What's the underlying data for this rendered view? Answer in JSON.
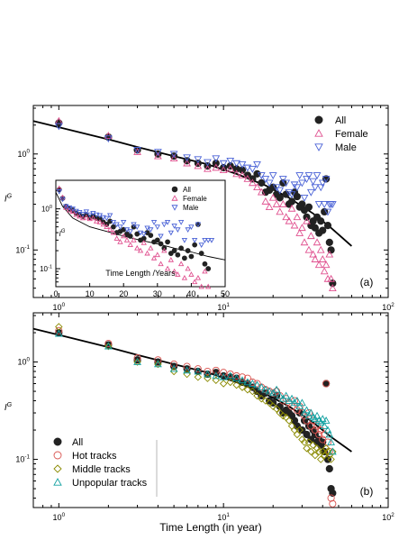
{
  "colors": {
    "all": "#222222",
    "female": "#e0508f",
    "male": "#4a62d6",
    "hot": "#d9534f",
    "middle": "#8a8a00",
    "unpopular": "#10a0a0",
    "fit": "#000000"
  },
  "chart_data": [
    {
      "type": "scatter",
      "panel_label": "(a)",
      "xscale": "log",
      "yscale": "log",
      "xlim": [
        0.7,
        100
      ],
      "ylim": [
        0.032,
        3.2
      ],
      "x_ticks": [
        {
          "v": 1,
          "label": "10",
          "exp": "0"
        },
        {
          "v": 10,
          "label": "10",
          "exp": "1"
        },
        {
          "v": 100,
          "label": "10",
          "exp": "2"
        }
      ],
      "y_ticks": [
        {
          "v": 0.1,
          "label": "10",
          "exp": "-1"
        },
        {
          "v": 1,
          "label": "10",
          "exp": "0"
        }
      ],
      "ylabel": "I",
      "ylabel_sup": "G",
      "xlabel": "",
      "legend": [
        "All",
        "Female",
        "Male"
      ],
      "fit": {
        "x": [
          0.7,
          1,
          2,
          3,
          5,
          8,
          12,
          18,
          25,
          35,
          45,
          60
        ],
        "y": [
          2.2,
          1.9,
          1.42,
          1.18,
          0.95,
          0.78,
          0.62,
          0.47,
          0.35,
          0.24,
          0.17,
          0.11
        ]
      },
      "series": [
        {
          "name": "All",
          "marker": "filled-circle",
          "x": [
            1,
            2,
            3,
            4,
            5,
            6,
            7,
            8,
            9,
            10,
            11,
            12,
            13,
            14,
            15,
            16,
            17,
            18,
            19,
            20,
            21,
            22,
            23,
            24,
            25,
            26,
            27,
            28,
            29,
            30,
            31,
            32,
            33,
            34,
            35,
            36,
            37,
            38,
            39,
            40,
            41,
            42,
            43,
            44,
            45,
            46
          ],
          "y": [
            2.1,
            1.5,
            1.1,
            1.0,
            0.95,
            0.85,
            0.8,
            0.75,
            0.8,
            0.72,
            0.75,
            0.7,
            0.68,
            0.6,
            0.55,
            0.62,
            0.5,
            0.4,
            0.42,
            0.45,
            0.38,
            0.35,
            0.5,
            0.38,
            0.3,
            0.32,
            0.4,
            0.36,
            0.28,
            0.3,
            0.26,
            0.22,
            0.28,
            0.18,
            0.2,
            0.17,
            0.22,
            0.15,
            0.2,
            0.16,
            0.25,
            0.55,
            0.18,
            0.12,
            0.1,
            0.045
          ]
        },
        {
          "name": "Female",
          "marker": "triangle-up",
          "x": [
            1,
            2,
            3,
            4,
            5,
            6,
            7,
            8,
            9,
            10,
            11,
            12,
            13,
            14,
            15,
            16,
            17,
            18,
            19,
            20,
            21,
            22,
            23,
            24,
            25,
            26,
            27,
            28,
            29,
            30,
            31,
            32,
            33,
            34,
            35,
            36,
            37,
            38,
            39,
            40,
            41,
            42,
            43,
            44,
            45,
            46
          ],
          "y": [
            2.2,
            1.55,
            1.05,
            0.95,
            0.9,
            0.8,
            0.75,
            0.7,
            0.72,
            0.68,
            0.7,
            0.62,
            0.6,
            0.55,
            0.5,
            0.45,
            0.4,
            0.32,
            0.28,
            0.35,
            0.3,
            0.25,
            0.3,
            0.22,
            0.2,
            0.27,
            0.18,
            0.22,
            0.15,
            0.17,
            0.12,
            0.2,
            0.1,
            0.14,
            0.09,
            0.08,
            0.12,
            0.07,
            0.1,
            0.08,
            0.06,
            0.07,
            0.05,
            0.09,
            0.05,
            0.04
          ]
        },
        {
          "name": "Male",
          "marker": "triangle-down",
          "x": [
            1,
            2,
            3,
            4,
            5,
            6,
            7,
            8,
            9,
            10,
            11,
            12,
            13,
            14,
            15,
            16,
            17,
            18,
            19,
            20,
            21,
            22,
            23,
            24,
            25,
            26,
            27,
            28,
            29,
            30,
            31,
            32,
            33,
            34,
            35,
            36,
            37,
            38,
            39,
            40,
            41,
            42,
            43,
            44,
            45,
            46
          ],
          "y": [
            1.95,
            1.45,
            1.1,
            1.05,
            1.0,
            0.92,
            0.88,
            0.82,
            0.9,
            0.8,
            0.85,
            0.8,
            0.78,
            0.72,
            0.7,
            0.78,
            0.6,
            0.55,
            0.5,
            0.6,
            0.45,
            0.42,
            0.55,
            0.5,
            0.4,
            0.38,
            0.48,
            0.45,
            0.6,
            0.5,
            0.35,
            0.55,
            0.6,
            0.4,
            0.52,
            0.45,
            0.6,
            0.3,
            0.45,
            0.5,
            0.3,
            0.55,
            0.25,
            0.3,
            0.3,
            0.3
          ]
        }
      ]
    },
    {
      "type": "scatter",
      "inset": true,
      "xscale": "linear",
      "yscale": "log",
      "xlim": [
        0,
        50
      ],
      "ylim": [
        0.05,
        3
      ],
      "x_ticks": [
        0,
        10,
        20,
        30,
        40,
        50
      ],
      "y_ticks": [
        {
          "v": 0.1,
          "label": "10",
          "exp": "-1"
        },
        {
          "v": 1,
          "label": "10",
          "exp": "0"
        }
      ],
      "ylabel": "I",
      "ylabel_sup": "G",
      "xlabel": "Time Length /Years",
      "legend": [
        "All",
        "Female",
        "Male"
      ],
      "fit": {
        "x": [
          0,
          2,
          5,
          10,
          15,
          20,
          25,
          30,
          35,
          40,
          45,
          50
        ],
        "y": [
          1.9,
          1.1,
          0.7,
          0.5,
          0.42,
          0.35,
          0.3,
          0.26,
          0.22,
          0.19,
          0.16,
          0.14
        ]
      }
    },
    {
      "type": "scatter",
      "panel_label": "(b)",
      "xscale": "log",
      "yscale": "log",
      "xlim": [
        0.7,
        100
      ],
      "ylim": [
        0.032,
        3.2
      ],
      "x_ticks": [
        {
          "v": 1,
          "label": "10",
          "exp": "0"
        },
        {
          "v": 10,
          "label": "10",
          "exp": "1"
        },
        {
          "v": 100,
          "label": "10",
          "exp": "2"
        }
      ],
      "y_ticks": [
        {
          "v": 0.1,
          "label": "10",
          "exp": "-1"
        },
        {
          "v": 1,
          "label": "10",
          "exp": "0"
        }
      ],
      "ylabel": "I",
      "ylabel_sup": "G",
      "xlabel": "Time Length (in year)",
      "legend": [
        "All",
        "Hot tracks",
        "Middle tracks",
        "Unpopular tracks"
      ],
      "fit": {
        "x": [
          0.7,
          1,
          2,
          3,
          5,
          8,
          12,
          18,
          25,
          35,
          45,
          60
        ],
        "y": [
          2.2,
          1.9,
          1.42,
          1.18,
          0.95,
          0.78,
          0.62,
          0.47,
          0.35,
          0.24,
          0.17,
          0.12
        ]
      },
      "series": [
        {
          "name": "All",
          "marker": "filled-circle",
          "x": [
            1,
            2,
            3,
            4,
            5,
            6,
            7,
            8,
            9,
            10,
            11,
            12,
            13,
            14,
            15,
            16,
            17,
            18,
            19,
            20,
            21,
            22,
            23,
            24,
            25,
            26,
            27,
            28,
            29,
            30,
            31,
            32,
            33,
            34,
            35,
            36,
            37,
            38,
            39,
            40,
            41,
            42,
            43,
            44,
            45,
            46
          ],
          "y": [
            2.0,
            1.5,
            1.05,
            1.0,
            0.9,
            0.85,
            0.8,
            0.75,
            0.78,
            0.72,
            0.7,
            0.68,
            0.62,
            0.6,
            0.55,
            0.5,
            0.45,
            0.48,
            0.4,
            0.38,
            0.45,
            0.35,
            0.3,
            0.32,
            0.3,
            0.28,
            0.25,
            0.22,
            0.3,
            0.2,
            0.25,
            0.18,
            0.22,
            0.16,
            0.2,
            0.18,
            0.15,
            0.16,
            0.14,
            0.15,
            0.12,
            0.6,
            0.1,
            0.08,
            0.05,
            0.045
          ]
        },
        {
          "name": "Hot tracks",
          "marker": "open-circle",
          "x": [
            1,
            2,
            3,
            4,
            5,
            6,
            7,
            8,
            9,
            10,
            11,
            12,
            13,
            14,
            15,
            16,
            17,
            18,
            19,
            20,
            21,
            22,
            23,
            24,
            25,
            26,
            27,
            28,
            29,
            30,
            31,
            32,
            33,
            34,
            35,
            36,
            37,
            38,
            39,
            40,
            41,
            42,
            43,
            44,
            45,
            46
          ],
          "y": [
            2.1,
            1.55,
            1.1,
            1.05,
            0.95,
            0.9,
            0.85,
            0.8,
            0.82,
            0.78,
            0.75,
            0.72,
            0.7,
            0.68,
            0.62,
            0.6,
            0.55,
            0.52,
            0.5,
            0.48,
            0.5,
            0.45,
            0.4,
            0.42,
            0.38,
            0.35,
            0.4,
            0.32,
            0.35,
            0.3,
            0.28,
            0.25,
            0.3,
            0.22,
            0.25,
            0.2,
            0.22,
            0.18,
            0.2,
            0.16,
            0.18,
            0.6,
            0.15,
            0.12,
            0.04,
            0.035
          ]
        },
        {
          "name": "Middle tracks",
          "marker": "open-diamond",
          "x": [
            1,
            2,
            3,
            4,
            5,
            6,
            7,
            8,
            9,
            10,
            11,
            12,
            13,
            14,
            15,
            16,
            17,
            18,
            19,
            20,
            21,
            22,
            23,
            24,
            25,
            26,
            27,
            28,
            29,
            30,
            31,
            32,
            33,
            34,
            35,
            36,
            37,
            38,
            39,
            40,
            41,
            42,
            43,
            44,
            45,
            46
          ],
          "y": [
            2.3,
            1.45,
            1.0,
            0.95,
            0.8,
            0.75,
            0.7,
            0.68,
            0.65,
            0.6,
            0.62,
            0.58,
            0.55,
            0.52,
            0.5,
            0.45,
            0.42,
            0.4,
            0.38,
            0.35,
            0.33,
            0.3,
            0.28,
            0.27,
            0.25,
            0.22,
            0.2,
            0.18,
            0.2,
            0.16,
            0.15,
            0.13,
            0.15,
            0.12,
            0.14,
            0.11,
            0.13,
            0.12,
            0.1,
            0.12,
            0.11,
            0.13,
            0.12,
            0.11,
            0.1,
            0.12
          ]
        },
        {
          "name": "Unpopular tracks",
          "marker": "open-triangle",
          "x": [
            1,
            2,
            3,
            4,
            5,
            6,
            7,
            8,
            9,
            10,
            11,
            12,
            13,
            14,
            15,
            16,
            17,
            18,
            19,
            20,
            21,
            22,
            23,
            24,
            25,
            26,
            27,
            28,
            29,
            30,
            31,
            32,
            33,
            34,
            35,
            36,
            37,
            38,
            39,
            40,
            41,
            42,
            43,
            44,
            45,
            46
          ],
          "y": [
            1.95,
            1.45,
            1.0,
            0.95,
            0.85,
            0.82,
            0.8,
            0.75,
            0.72,
            0.7,
            0.72,
            0.68,
            0.65,
            0.62,
            0.6,
            0.58,
            0.55,
            0.52,
            0.5,
            0.48,
            0.52,
            0.45,
            0.42,
            0.45,
            0.4,
            0.42,
            0.38,
            0.4,
            0.35,
            0.38,
            0.3,
            0.32,
            0.28,
            0.3,
            0.27,
            0.26,
            0.28,
            0.25,
            0.24,
            0.26,
            0.22,
            0.25,
            0.2,
            0.18,
            0.15,
            0.12
          ]
        }
      ]
    }
  ]
}
